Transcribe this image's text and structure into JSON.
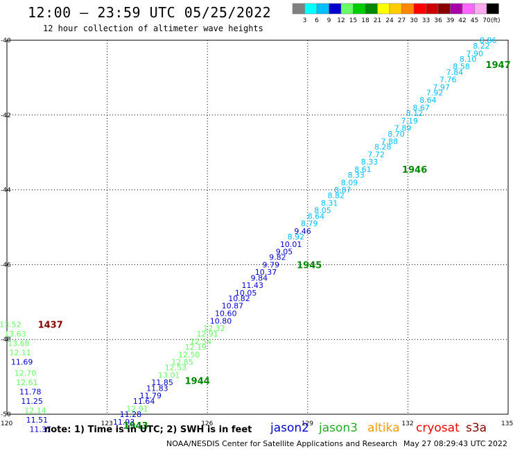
{
  "title": "12:00 – 23:59 UTC 05/25/2022",
  "subtitle": "12 hour collection of altimeter wave heights",
  "note": "note: 1) Time is in UTC; 2) SWH is in feet",
  "footer": "NOAA/NESDIS Center for Satellite Applications and Research",
  "timestamp": "May 27 08:29:43 UTC 2022",
  "satellites": [
    {
      "name": "jason2",
      "color": "#0000cc"
    },
    {
      "name": "jason3",
      "color": "#22aa22"
    },
    {
      "name": "altika",
      "color": "#ff9900"
    },
    {
      "name": "cryosat",
      "color": "#ee0000"
    },
    {
      "name": "s3a",
      "color": "#880000"
    }
  ],
  "colorbar": {
    "labels": [
      "3",
      "6",
      "9",
      "12",
      "15",
      "18",
      "21",
      "24",
      "27",
      "30",
      "33",
      "36",
      "39",
      "42",
      "45",
      "70"
    ],
    "colors": [
      "#808080",
      "#00ffff",
      "#00bfff",
      "#0000cd",
      "#66ff66",
      "#00cc00",
      "#008800",
      "#ffff00",
      "#ffcc00",
      "#ff8800",
      "#ff0000",
      "#cc0000",
      "#880000",
      "#aa00aa",
      "#ff66ff",
      "#ffaaee",
      "#000000"
    ],
    "unit": "(ft)"
  },
  "chart_data": {
    "type": "scatter",
    "xlim": [
      120,
      135
    ],
    "ylim": [
      -50,
      -40
    ],
    "xticks": [
      120,
      123,
      126,
      129,
      132,
      135
    ],
    "yticks": [
      -40,
      -42,
      -44,
      -46,
      -48,
      -50
    ],
    "grid": true,
    "points": [
      {
        "x": 134.4,
        "y": -40.0,
        "label": "8.86",
        "color": "#00bfff"
      },
      {
        "x": 134.2,
        "y": -40.15,
        "label": "8.22",
        "color": "#00bfff"
      },
      {
        "x": 134.0,
        "y": -40.35,
        "label": "7.90",
        "color": "#00bfff"
      },
      {
        "x": 133.8,
        "y": -40.5,
        "label": "8.10",
        "color": "#00bfff"
      },
      {
        "x": 133.6,
        "y": -40.7,
        "label": "8.58",
        "color": "#00bfff"
      },
      {
        "x": 133.4,
        "y": -40.85,
        "label": "7.84",
        "color": "#00bfff"
      },
      {
        "x": 133.2,
        "y": -41.05,
        "label": "7.76",
        "color": "#00bfff"
      },
      {
        "x": 133.0,
        "y": -41.25,
        "label": "7.97",
        "color": "#00bfff"
      },
      {
        "x": 132.8,
        "y": -41.4,
        "label": "7.92",
        "color": "#00bfff"
      },
      {
        "x": 132.6,
        "y": -41.6,
        "label": "8.64",
        "color": "#00bfff"
      },
      {
        "x": 132.4,
        "y": -41.8,
        "label": "8.67",
        "color": "#00bfff"
      },
      {
        "x": 132.2,
        "y": -41.95,
        "label": "8.12",
        "color": "#00bfff"
      },
      {
        "x": 132.05,
        "y": -42.15,
        "label": "7.19",
        "color": "#00bfff"
      },
      {
        "x": 131.85,
        "y": -42.35,
        "label": "7.89",
        "color": "#00bfff"
      },
      {
        "x": 131.65,
        "y": -42.5,
        "label": "8.70",
        "color": "#00bfff"
      },
      {
        "x": 131.45,
        "y": -42.7,
        "label": "7.88",
        "color": "#00bfff"
      },
      {
        "x": 131.25,
        "y": -42.85,
        "label": "8.28",
        "color": "#00bfff"
      },
      {
        "x": 131.05,
        "y": -43.05,
        "label": "7.72",
        "color": "#00bfff"
      },
      {
        "x": 130.85,
        "y": -43.25,
        "label": "8.33",
        "color": "#00bfff"
      },
      {
        "x": 130.65,
        "y": -43.45,
        "label": "8.61",
        "color": "#00bfff"
      },
      {
        "x": 130.45,
        "y": -43.6,
        "label": "8.33",
        "color": "#00bfff"
      },
      {
        "x": 130.25,
        "y": -43.8,
        "label": "8.09",
        "color": "#00bfff"
      },
      {
        "x": 130.05,
        "y": -44.0,
        "label": "8.87",
        "color": "#00bfff"
      },
      {
        "x": 129.85,
        "y": -44.15,
        "label": "8.82",
        "color": "#00bfff"
      },
      {
        "x": 129.65,
        "y": -44.35,
        "label": "8.31",
        "color": "#00bfff"
      },
      {
        "x": 129.45,
        "y": -44.55,
        "label": "8.05",
        "color": "#00bfff"
      },
      {
        "x": 129.25,
        "y": -44.7,
        "label": "8.64",
        "color": "#00bfff"
      },
      {
        "x": 129.05,
        "y": -44.9,
        "label": "8.79",
        "color": "#00bfff"
      },
      {
        "x": 128.85,
        "y": -45.1,
        "label": "9.46",
        "color": "#0000cd"
      },
      {
        "x": 128.65,
        "y": -45.25,
        "label": "8.92",
        "color": "#00bfff"
      },
      {
        "x": 128.5,
        "y": -45.45,
        "label": "10.01",
        "color": "#0000cd"
      },
      {
        "x": 128.3,
        "y": -45.65,
        "label": "9.05",
        "color": "#0000cd"
      },
      {
        "x": 128.1,
        "y": -45.8,
        "label": "9.82",
        "color": "#0000cd"
      },
      {
        "x": 127.9,
        "y": -46.0,
        "label": "9.79",
        "color": "#0000cd"
      },
      {
        "x": 127.75,
        "y": -46.2,
        "label": "10.37",
        "color": "#0000cd"
      },
      {
        "x": 127.55,
        "y": -46.35,
        "label": "9.84",
        "color": "#0000cd"
      },
      {
        "x": 127.35,
        "y": -46.55,
        "label": "11.43",
        "color": "#0000cd"
      },
      {
        "x": 127.15,
        "y": -46.75,
        "label": "10.05",
        "color": "#0000cd"
      },
      {
        "x": 126.95,
        "y": -46.9,
        "label": "10.82",
        "color": "#0000cd"
      },
      {
        "x": 126.75,
        "y": -47.1,
        "label": "10.87",
        "color": "#0000cd"
      },
      {
        "x": 126.55,
        "y": -47.3,
        "label": "10.60",
        "color": "#0000cd"
      },
      {
        "x": 126.4,
        "y": -47.5,
        "label": "10.80",
        "color": "#0000cd"
      },
      {
        "x": 126.2,
        "y": -47.7,
        "label": "12.32",
        "color": "#66ff66"
      },
      {
        "x": 126.0,
        "y": -47.85,
        "label": "12.91",
        "color": "#66ff66"
      },
      {
        "x": 125.8,
        "y": -48.05,
        "label": "12.54",
        "color": "#66ff66"
      },
      {
        "x": 125.65,
        "y": -48.2,
        "label": "12.19",
        "color": "#66ff66"
      },
      {
        "x": 125.45,
        "y": -48.4,
        "label": "12.50",
        "color": "#66ff66"
      },
      {
        "x": 125.25,
        "y": -48.6,
        "label": "12.85",
        "color": "#66ff66"
      },
      {
        "x": 125.05,
        "y": -48.75,
        "label": "12.53",
        "color": "#66ff66"
      },
      {
        "x": 124.85,
        "y": -48.95,
        "label": "13.01",
        "color": "#66ff66"
      },
      {
        "x": 124.65,
        "y": -49.15,
        "label": "11.85",
        "color": "#0000cd"
      },
      {
        "x": 124.5,
        "y": -49.3,
        "label": "11.83",
        "color": "#0000cd"
      },
      {
        "x": 124.3,
        "y": -49.5,
        "label": "11.79",
        "color": "#0000cd"
      },
      {
        "x": 124.1,
        "y": -49.65,
        "label": "11.64",
        "color": "#0000cd"
      },
      {
        "x": 123.9,
        "y": -49.85,
        "label": "12.91",
        "color": "#66ff66"
      },
      {
        "x": 123.7,
        "y": -50.0,
        "label": "11.28",
        "color": "#0000cd"
      },
      {
        "x": 123.5,
        "y": -50.2,
        "label": "11.93",
        "color": "#0000cd"
      },
      {
        "x": 120.1,
        "y": -47.6,
        "label": "13.52",
        "color": "#66ff66"
      },
      {
        "x": 120.25,
        "y": -47.85,
        "label": "13.63",
        "color": "#66ff66"
      },
      {
        "x": 120.35,
        "y": -48.1,
        "label": "13.68",
        "color": "#66ff66"
      },
      {
        "x": 120.4,
        "y": -48.35,
        "label": "12.11",
        "color": "#66ff66"
      },
      {
        "x": 120.45,
        "y": -48.6,
        "label": "11.69",
        "color": "#0000cd"
      },
      {
        "x": 120.55,
        "y": -48.9,
        "label": "12.70",
        "color": "#66ff66"
      },
      {
        "x": 120.6,
        "y": -49.15,
        "label": "12.61",
        "color": "#66ff66"
      },
      {
        "x": 120.7,
        "y": -49.4,
        "label": "11.78",
        "color": "#0000cd"
      },
      {
        "x": 120.75,
        "y": -49.65,
        "label": "11.25",
        "color": "#0000cd"
      },
      {
        "x": 120.85,
        "y": -49.9,
        "label": "12.14",
        "color": "#66ff66"
      },
      {
        "x": 120.9,
        "y": -50.15,
        "label": "11.51",
        "color": "#0000cd"
      },
      {
        "x": 121.0,
        "y": -50.4,
        "label": "11.37",
        "color": "#0000cd"
      }
    ],
    "annotations": [
      {
        "x": 134.7,
        "y": -40.65,
        "label": "1947",
        "color": "#008800"
      },
      {
        "x": 132.2,
        "y": -43.45,
        "label": "1946",
        "color": "#008800"
      },
      {
        "x": 129.05,
        "y": -46.0,
        "label": "1945",
        "color": "#008800"
      },
      {
        "x": 125.7,
        "y": -49.1,
        "label": "1944",
        "color": "#008800"
      },
      {
        "x": 123.85,
        "y": -50.3,
        "label": "1943",
        "color": "#008800"
      },
      {
        "x": 121.3,
        "y": -47.6,
        "label": "1437",
        "color": "#880000"
      }
    ]
  }
}
